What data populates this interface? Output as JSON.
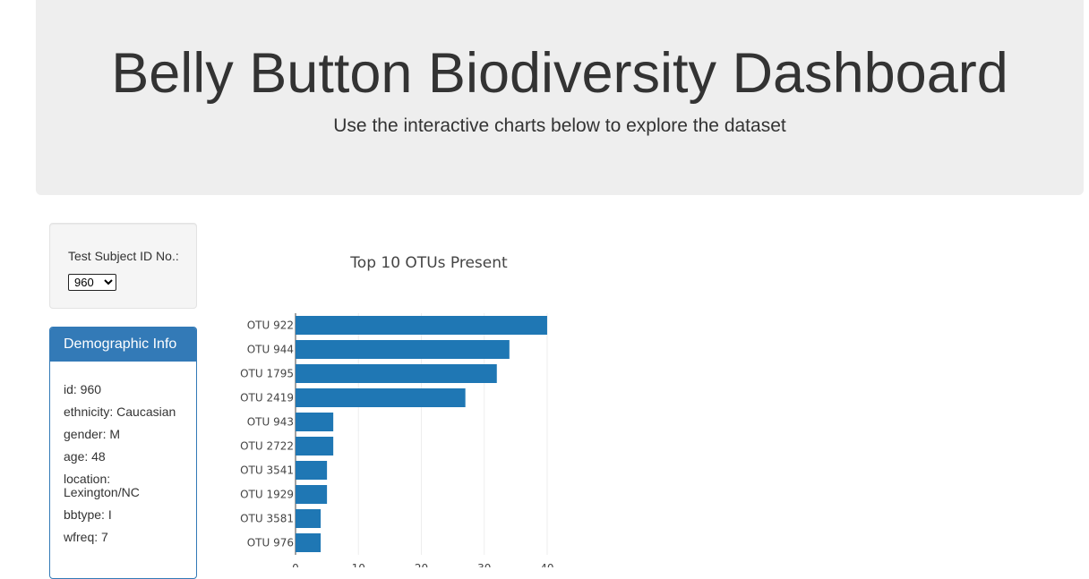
{
  "header": {
    "title": "Belly Button Biodiversity Dashboard",
    "subtitle": "Use the interactive charts below to explore the dataset"
  },
  "selector": {
    "label": "Test Subject ID No.:",
    "selected": "960"
  },
  "demographics": {
    "heading": "Demographic Info",
    "rows": [
      "id: 960",
      "ethnicity: Caucasian",
      "gender: M",
      "age: 48",
      "location: Lexington/NC",
      "bbtype: I",
      "wfreq: 7"
    ]
  },
  "colors": {
    "bar": "#1f77b4",
    "panel_accent": "#337ab7"
  },
  "chart_data": {
    "type": "bar",
    "orientation": "horizontal",
    "title": "Top 10 OTUs Present",
    "categories": [
      "OTU 922",
      "OTU 944",
      "OTU 1795",
      "OTU 2419",
      "OTU 943",
      "OTU 2722",
      "OTU 3541",
      "OTU 1929",
      "OTU 3581",
      "OTU 976"
    ],
    "values": [
      40,
      34,
      32,
      27,
      6,
      6,
      5,
      5,
      4,
      4
    ],
    "xticks": [
      0,
      10,
      20,
      30,
      40
    ],
    "xlim": [
      0,
      42
    ],
    "grid": true
  }
}
